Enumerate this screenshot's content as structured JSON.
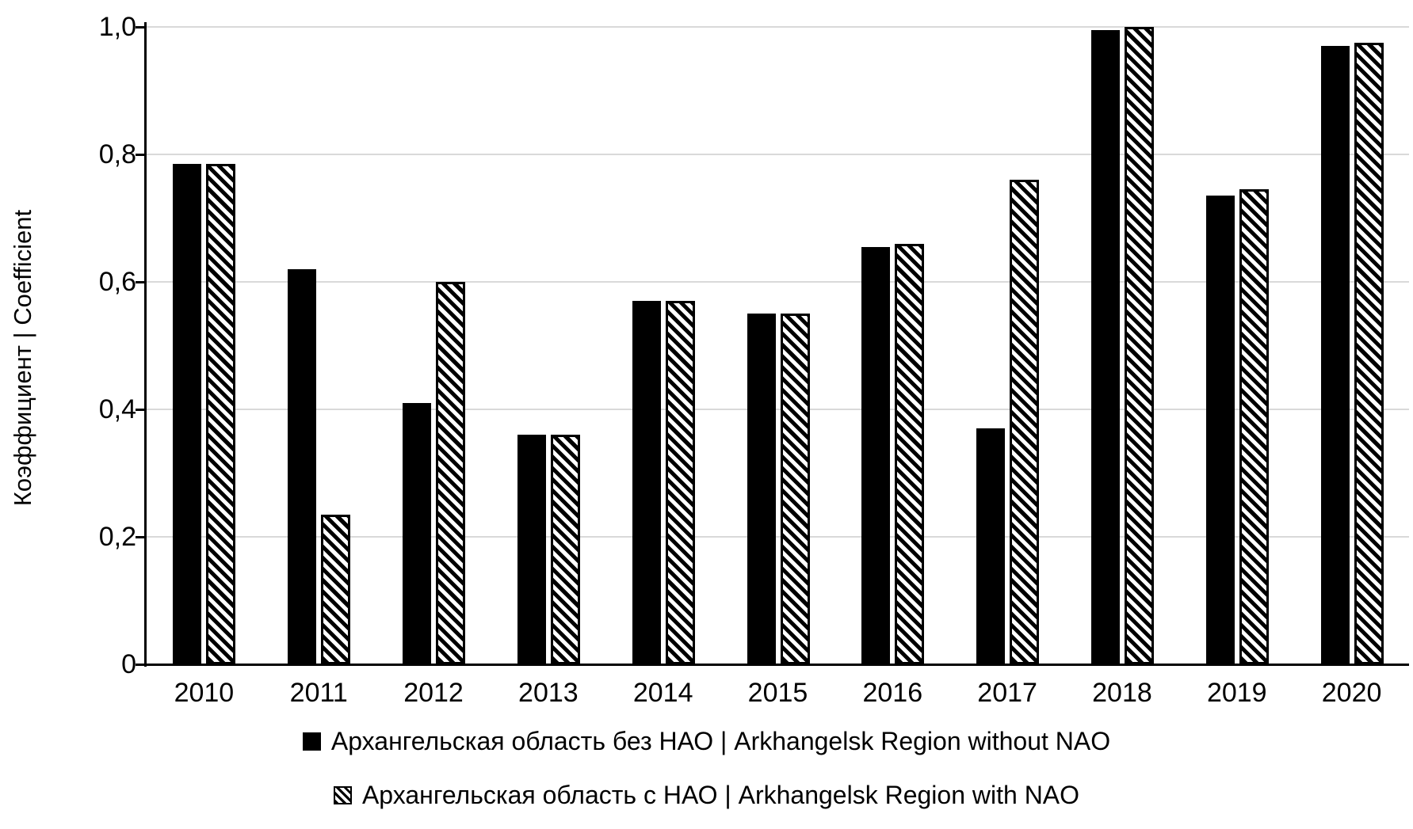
{
  "chart_data": {
    "type": "bar",
    "title": "",
    "xlabel": "",
    "ylabel": "Коэффициент | Coefficient",
    "categories": [
      "2010",
      "2011",
      "2012",
      "2013",
      "2014",
      "2015",
      "2016",
      "2017",
      "2018",
      "2019",
      "2020"
    ],
    "series": [
      {
        "name": "Архангельская область без НАО | Arkhangelsk Region without NAO",
        "style": "solid-black",
        "values": [
          0.785,
          0.62,
          0.41,
          0.36,
          0.57,
          0.55,
          0.655,
          0.37,
          0.995,
          0.735,
          0.97
        ]
      },
      {
        "name": "Архангельская область с НАО | Arkhangelsk Region with NAO",
        "style": "diagonal-hatch",
        "values": [
          0.785,
          0.235,
          0.6,
          0.36,
          0.57,
          0.55,
          0.66,
          0.76,
          1.0,
          0.745,
          0.975
        ]
      }
    ],
    "ylim": [
      0,
      1.0
    ],
    "yticks": [
      {
        "value": 0,
        "label": "0"
      },
      {
        "value": 0.2,
        "label": "0,2"
      },
      {
        "value": 0.4,
        "label": "0,4"
      },
      {
        "value": 0.6,
        "label": "0,6"
      },
      {
        "value": 0.8,
        "label": "0,8"
      },
      {
        "value": 1.0,
        "label": "1,0"
      }
    ],
    "grid": "horizontal",
    "legend_position": "bottom",
    "colors": {
      "bar": "#000000",
      "hatch_background": "#ffffff",
      "gridline": "#d9d9d9",
      "axis": "#000000",
      "text": "#000000",
      "background": "#ffffff"
    }
  }
}
